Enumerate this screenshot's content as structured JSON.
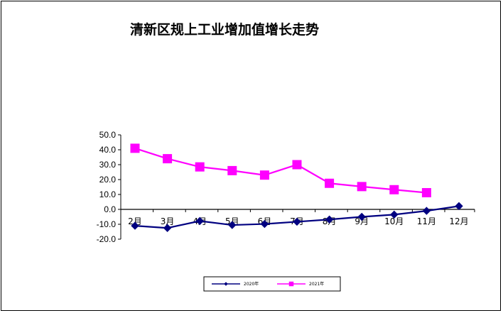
{
  "chart_data": {
    "type": "line",
    "title": "清新区规上工业增加值增长走势",
    "xlabel": "",
    "ylabel": "",
    "categories": [
      "2月",
      "3月",
      "4月",
      "5月",
      "6月",
      "7月",
      "8月",
      "9月",
      "10月",
      "11月",
      "12月"
    ],
    "ylim": [
      -20,
      50
    ],
    "yticks": [
      "50.0",
      "40.0",
      "30.0",
      "20.0",
      "10.0",
      "0.0",
      "-10.0",
      "-20.0"
    ],
    "grid": false,
    "legend_position": "bottom-center",
    "series": [
      {
        "name": "2020年",
        "color": "#000080",
        "marker": "diamond",
        "values": [
          -11.0,
          -12.5,
          -7.8,
          -10.5,
          -9.8,
          -8.3,
          -6.8,
          -5.0,
          -3.5,
          -1.0,
          2.2
        ]
      },
      {
        "name": "2021年",
        "color": "#FF00FF",
        "marker": "square",
        "values": [
          41.0,
          34.0,
          28.5,
          26.0,
          23.0,
          30.0,
          17.5,
          15.3,
          13.2,
          11.2,
          null
        ]
      }
    ]
  }
}
